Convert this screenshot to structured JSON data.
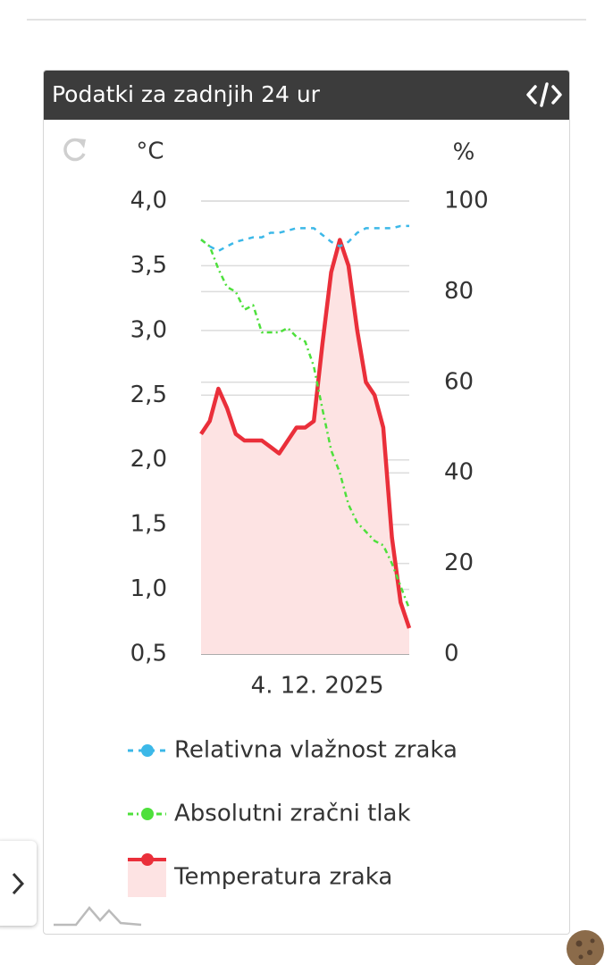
{
  "widget_title": "Podatki za zadnjih 24 ur",
  "chart_data": {
    "type": "line",
    "y_label": "°C",
    "y2_label": "%",
    "x": [
      0,
      1,
      2,
      3,
      4,
      5,
      6,
      7,
      8,
      9,
      10,
      11,
      12,
      13,
      14,
      15,
      16,
      17,
      18,
      19,
      20,
      21,
      22,
      23,
      24
    ],
    "xlim": [
      0,
      24
    ],
    "xticks": [
      {
        "value": 13.4,
        "label": "4. 12. 2025"
      }
    ],
    "ylim": [
      0.5,
      4.0
    ],
    "yticks": [
      {
        "value": 0.5,
        "label": "0,5"
      },
      {
        "value": 1.0,
        "label": "1,0"
      },
      {
        "value": 1.5,
        "label": "1,5"
      },
      {
        "value": 2.0,
        "label": "2,0"
      },
      {
        "value": 2.5,
        "label": "2,5"
      },
      {
        "value": 3.0,
        "label": "3,0"
      },
      {
        "value": 3.5,
        "label": "3,5"
      },
      {
        "value": 4.0,
        "label": "4,0"
      }
    ],
    "y2lim": [
      0,
      100
    ],
    "y2ticks": [
      0,
      20,
      40,
      60,
      80,
      100
    ],
    "grid": true,
    "series": [
      {
        "name": "Relativna vlažnost zraka",
        "color": "#3cb8e8",
        "dash": "dash",
        "axis": "y2",
        "values": [
          91.5,
          90,
          89,
          90,
          91,
          91.5,
          92,
          92,
          93,
          93,
          93.5,
          94,
          94,
          94,
          92.5,
          91,
          90,
          91,
          93,
          94,
          94,
          94,
          94,
          94.5,
          94.5
        ]
      },
      {
        "name": "Absolutni zračni tlak",
        "color": "#4ee03c",
        "dash": "dashdot",
        "axis": "y2",
        "values": [
          91.5,
          90,
          85,
          81,
          80,
          76,
          77,
          71,
          71,
          71,
          72,
          70,
          69,
          63.5,
          54,
          45,
          40,
          33,
          29,
          27,
          25,
          24,
          20,
          15,
          10
        ]
      },
      {
        "name": "Temperatura zraka",
        "color": "#ea2f3a",
        "dash": "solid",
        "area": true,
        "fill_color": "#fde3e3",
        "values": [
          2.2,
          2.3,
          2.55,
          2.4,
          2.2,
          2.15,
          2.15,
          2.15,
          2.1,
          2.05,
          2.15,
          2.25,
          2.25,
          2.3,
          2.9,
          3.45,
          3.7,
          3.5,
          3.0,
          2.6,
          2.5,
          2.25,
          1.4,
          0.9,
          0.7
        ]
      }
    ]
  }
}
